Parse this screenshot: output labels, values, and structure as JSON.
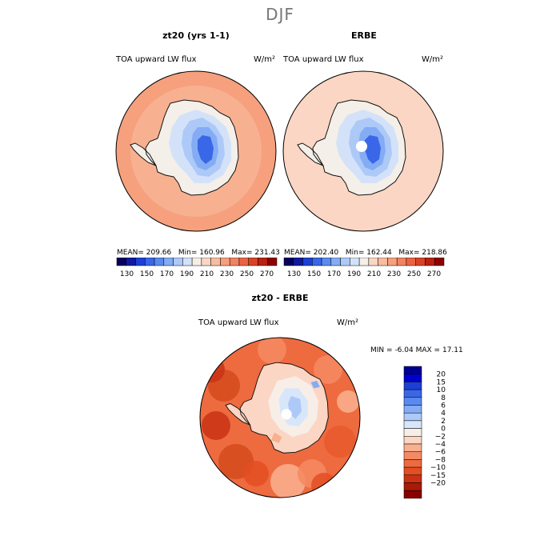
{
  "page_title": "DJF",
  "colors": {
    "abs_scale": [
      "#08005f",
      "#0f1a9e",
      "#1d3fd6",
      "#3967e8",
      "#5a8af0",
      "#84acf5",
      "#adc9f7",
      "#d3e2f9",
      "#f6efe8",
      "#fbd6c4",
      "#f9bc9f",
      "#f6a07d",
      "#f28260",
      "#eb6441",
      "#d94325",
      "#b8220f",
      "#8e0000"
    ],
    "diff_scale": [
      "#00008f",
      "#0000cc",
      "#1d3fd6",
      "#3967e8",
      "#5a8af0",
      "#84acf5",
      "#adc9f7",
      "#d8e6fa",
      "#f8eee8",
      "#fbd6c4",
      "#f9b08f",
      "#f48a63",
      "#ee6a3f",
      "#e34e22",
      "#c93214",
      "#a81b06",
      "#8a0000"
    ],
    "continent_outline": "#111111"
  },
  "chart_data": [
    {
      "type": "heatmap",
      "projection": "south-polar-stereographic",
      "title": "zt20 (yrs 1-1)",
      "field_label": "TOA upward LW flux",
      "units": "W/m²",
      "stats": {
        "mean_label": "MEAN=",
        "mean": "209.66",
        "min_label": "Min=",
        "min": "160.96",
        "max_label": "Max=",
        "max": "231.43"
      },
      "colorbar_ticks": [
        "130",
        "150",
        "170",
        "190",
        "210",
        "230",
        "250",
        "270"
      ],
      "colorbar_range": [
        120,
        280
      ],
      "ocean_value": 232,
      "coast_value": 222
    },
    {
      "type": "heatmap",
      "projection": "south-polar-stereographic",
      "title": "ERBE",
      "field_label": "TOA upward LW flux",
      "units": "W/m²",
      "stats": {
        "mean_label": "MEAN=",
        "mean": "202.40",
        "min_label": "Min=",
        "min": "162.44",
        "max_label": "Max=",
        "max": "218.86"
      },
      "colorbar_ticks": [
        "130",
        "150",
        "170",
        "190",
        "210",
        "230",
        "250",
        "270"
      ],
      "colorbar_range": [
        120,
        280
      ],
      "ocean_value": 212,
      "coast_value": 208
    },
    {
      "type": "heatmap",
      "projection": "south-polar-stereographic",
      "title": "zt20 - ERBE",
      "field_label": "TOA upward LW flux",
      "units": "W/m²",
      "stats": {
        "min_label": "MIN =",
        "min": "-6.04",
        "max_label": "MAX =",
        "max": "17.11"
      },
      "colorbar_levels": [
        "20",
        "15",
        "10",
        "8",
        "6",
        "4",
        "2",
        "0",
        "−2",
        "−4",
        "−6",
        "−8",
        "−10",
        "−15",
        "−20"
      ]
    }
  ]
}
